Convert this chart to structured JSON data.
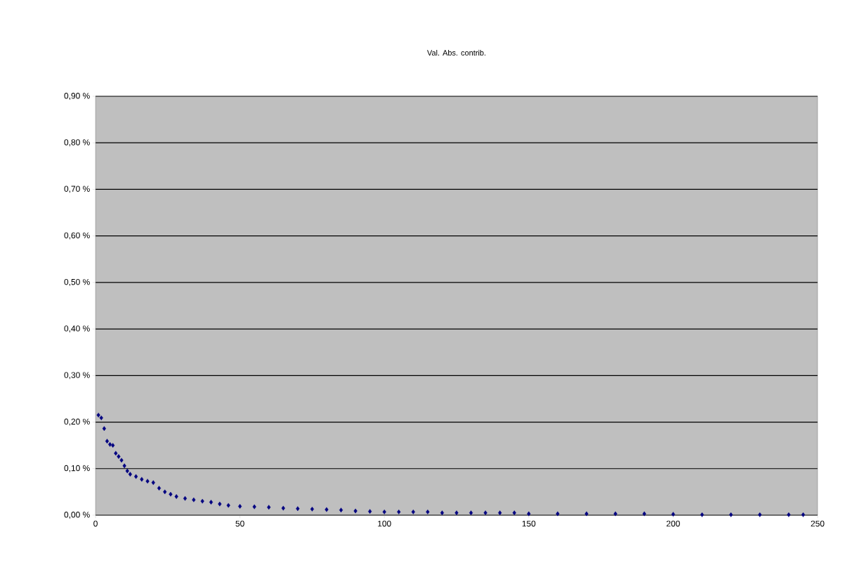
{
  "chart_data": {
    "type": "scatter",
    "title": "Val. Abs. contrib.",
    "x": [
      1,
      2,
      3,
      4,
      5,
      6,
      7,
      8,
      9,
      10,
      11,
      12,
      14,
      16,
      18,
      20,
      22,
      24,
      26,
      28,
      31,
      34,
      37,
      40,
      43,
      46,
      50,
      55,
      60,
      65,
      70,
      75,
      80,
      85,
      90,
      95,
      100,
      105,
      110,
      115,
      120,
      125,
      130,
      135,
      140,
      145,
      150,
      160,
      170,
      180,
      190,
      200,
      210,
      220,
      230,
      240,
      245
    ],
    "values": [
      0.215,
      0.209,
      0.186,
      0.159,
      0.152,
      0.15,
      0.133,
      0.126,
      0.118,
      0.106,
      0.095,
      0.088,
      0.083,
      0.077,
      0.073,
      0.07,
      0.058,
      0.05,
      0.045,
      0.04,
      0.036,
      0.033,
      0.03,
      0.028,
      0.024,
      0.021,
      0.019,
      0.018,
      0.017,
      0.015,
      0.014,
      0.013,
      0.012,
      0.011,
      0.009,
      0.008,
      0.007,
      0.007,
      0.007,
      0.007,
      0.005,
      0.005,
      0.005,
      0.005,
      0.005,
      0.005,
      0.003,
      0.003,
      0.003,
      0.003,
      0.003,
      0.002,
      0.001,
      0.001,
      0.001,
      0.001,
      0.001
    ],
    "color": "#000080",
    "marker": "diamond",
    "grid": "y",
    "xlim": [
      0,
      250
    ],
    "xticks": [
      0,
      50,
      100,
      150,
      200,
      250
    ],
    "ylim": [
      0,
      0.9
    ],
    "yticks": [
      {
        "value": 0,
        "label": "0,00 %"
      },
      {
        "value": 0.1,
        "label": "0,10 %"
      },
      {
        "value": 0.2,
        "label": "0,20 %"
      },
      {
        "value": 0.3,
        "label": "0,30 %"
      },
      {
        "value": 0.4,
        "label": "0,40 %"
      },
      {
        "value": 0.5,
        "label": "0,50 %"
      },
      {
        "value": 0.6,
        "label": "0,60 %"
      },
      {
        "value": 0.7,
        "label": "0,70 %"
      },
      {
        "value": 0.8,
        "label": "0,80 %"
      },
      {
        "value": 0.9,
        "label": "0,90 %"
      }
    ]
  }
}
